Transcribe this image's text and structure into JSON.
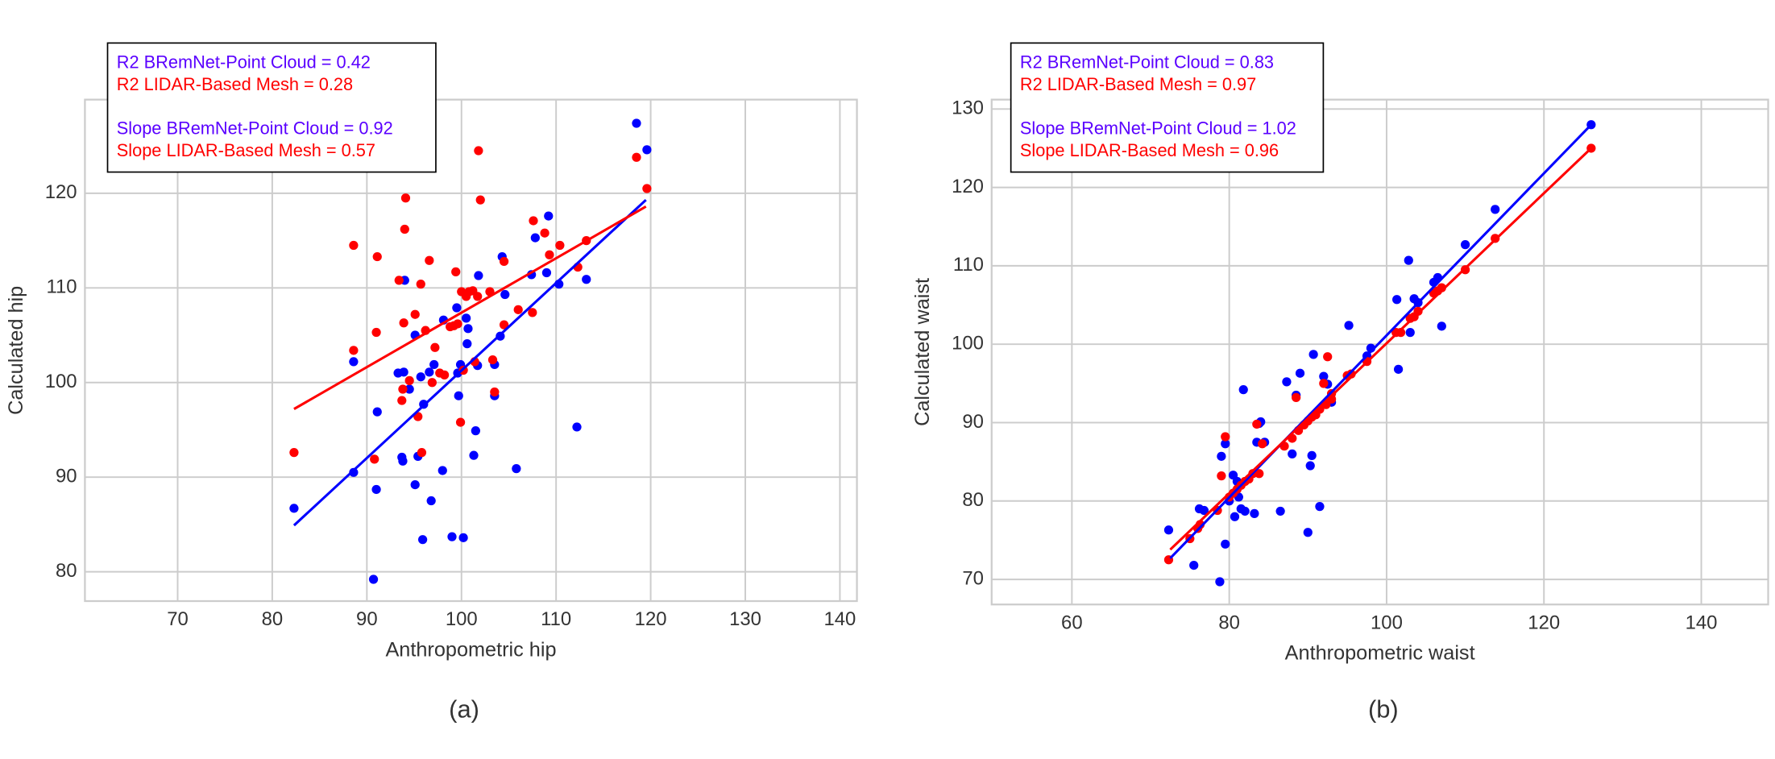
{
  "chart_data": [
    {
      "type": "scatter",
      "caption": "(a)",
      "xlabel": "Anthropometric hip",
      "ylabel": "Calculated hip",
      "xlim": [
        60.2,
        141.8
      ],
      "ylim": [
        76.9,
        129.9
      ],
      "xticks": [
        70,
        80,
        90,
        100,
        110,
        120,
        130,
        140
      ],
      "yticks": [
        80,
        90,
        100,
        110,
        120
      ],
      "grid": true,
      "annotations": [
        {
          "text": "R2 BRemNet-Point Cloud = 0.42",
          "color": "#5a00ff"
        },
        {
          "text": "R2 LIDAR-Based Mesh = 0.28",
          "color": "#ff0000"
        },
        {
          "text": "Slope BRemNet-Point Cloud = 0.92",
          "color": "#5a00ff"
        },
        {
          "text": "Slope LIDAR-Based Mesh = 0.57",
          "color": "#ff0000"
        }
      ],
      "series": [
        {
          "color": "#0000ff",
          "x": [
            82.3,
            88.6,
            88.6,
            90.7,
            91.0,
            91.1,
            93.3,
            93.9,
            93.7,
            93.8,
            94.0,
            94.5,
            95.1,
            95.1,
            95.4,
            95.7,
            95.9,
            96.0,
            96.6,
            96.8,
            97.1,
            98.0,
            98.1,
            99.0,
            99.5,
            99.6,
            99.7,
            99.9,
            100.2,
            100.5,
            100.6,
            100.7,
            101.3,
            101.5,
            101.7,
            101.8,
            103.5,
            103.5,
            104.1,
            104.3,
            104.6,
            105.8,
            107.4,
            107.8,
            109.0,
            109.2,
            110.3,
            112.2,
            113.2,
            118.5,
            119.6
          ],
          "values": [
            86.7,
            90.5,
            102.2,
            79.2,
            88.7,
            96.9,
            101.0,
            101.1,
            92.1,
            91.7,
            110.8,
            99.3,
            89.2,
            105.0,
            92.2,
            100.6,
            83.4,
            97.7,
            101.1,
            87.5,
            101.9,
            90.7,
            106.6,
            83.7,
            107.9,
            101.0,
            98.6,
            101.9,
            83.6,
            106.8,
            104.1,
            105.7,
            92.3,
            94.9,
            101.8,
            111.3,
            98.6,
            101.9,
            104.9,
            113.3,
            109.3,
            90.9,
            111.4,
            115.3,
            111.6,
            117.6,
            110.4,
            95.3,
            110.9,
            127.4,
            124.6
          ],
          "fit_x": [
            82.3,
            119.5
          ],
          "fit_y": [
            84.9,
            119.3
          ]
        },
        {
          "color": "#ff0000",
          "x": [
            82.3,
            88.6,
            88.6,
            90.8,
            91.0,
            91.1,
            93.4,
            93.7,
            93.8,
            93.9,
            94.0,
            94.1,
            94.5,
            95.1,
            95.4,
            95.7,
            95.8,
            96.2,
            96.6,
            96.9,
            97.2,
            97.7,
            98.2,
            98.8,
            99.2,
            99.4,
            99.6,
            99.9,
            100.0,
            100.2,
            100.5,
            100.8,
            101.2,
            101.4,
            101.7,
            101.8,
            102.0,
            103.0,
            103.3,
            103.5,
            104.5,
            104.5,
            106.0,
            107.5,
            107.6,
            108.8,
            109.3,
            110.4,
            112.3,
            113.2,
            118.5,
            119.6
          ],
          "values": [
            92.6,
            114.5,
            103.4,
            91.9,
            105.3,
            113.3,
            110.8,
            98.1,
            99.3,
            106.3,
            116.2,
            119.5,
            100.2,
            107.2,
            96.4,
            110.4,
            92.6,
            105.5,
            112.9,
            100.0,
            103.7,
            101.0,
            100.8,
            105.9,
            106.0,
            111.7,
            106.2,
            95.8,
            109.6,
            101.3,
            109.1,
            109.6,
            109.7,
            102.2,
            109.1,
            124.5,
            119.3,
            109.6,
            102.4,
            99.0,
            106.1,
            112.8,
            107.7,
            107.4,
            117.1,
            115.8,
            113.5,
            114.5,
            112.2,
            115.0,
            123.8,
            120.5
          ],
          "fit_x": [
            82.3,
            119.5
          ],
          "fit_y": [
            97.2,
            118.6
          ]
        }
      ]
    },
    {
      "type": "scatter",
      "caption": "(b)",
      "xlabel": "Anthropometric waist",
      "ylabel": "Calculated waist",
      "xlim": [
        49.8,
        148.5
      ],
      "ylim": [
        66.8,
        131.2
      ],
      "xticks": [
        60,
        80,
        100,
        120,
        140
      ],
      "yticks": [
        70,
        80,
        90,
        100,
        110,
        120,
        130
      ],
      "grid": true,
      "annotations": [
        {
          "text": "R2 BRemNet-Point Cloud = 0.83",
          "color": "#5a00ff"
        },
        {
          "text": "R2 LIDAR-Based Mesh = 0.97",
          "color": "#ff0000"
        },
        {
          "text": "Slope BRemNet-Point Cloud = 1.02",
          "color": "#5a00ff"
        },
        {
          "text": "Slope LIDAR-Based Mesh = 0.96",
          "color": "#ff0000"
        }
      ],
      "series": [
        {
          "color": "#0000ff",
          "x": [
            72.3,
            75.5,
            76.2,
            76.8,
            78.8,
            79,
            79.5,
            79.5,
            80,
            80.5,
            80.7,
            81,
            81.2,
            81.5,
            81.8,
            82,
            83.2,
            83.5,
            83.8,
            84,
            84.5,
            86.5,
            87.3,
            88,
            88.5,
            89,
            90,
            90.3,
            90.5,
            90.7,
            91.5,
            92,
            92.5,
            93,
            95.2,
            97.5,
            98,
            101.3,
            101.5,
            102.8,
            103,
            103.5,
            104,
            106,
            106.5,
            107,
            110,
            113.8,
            126
          ],
          "values": [
            76.3,
            71.8,
            79,
            78.8,
            69.7,
            85.7,
            87.3,
            74.5,
            80,
            83.3,
            78,
            82.5,
            80.5,
            79.0,
            94.2,
            78.7,
            78.4,
            87.5,
            89.9,
            90.1,
            87.5,
            78.7,
            95.2,
            86,
            93.5,
            96.3,
            76,
            84.5,
            85.8,
            98.7,
            79.3,
            95.9,
            94.9,
            92.6,
            102.4,
            98.5,
            99.5,
            105.7,
            96.8,
            110.7,
            101.5,
            105.8,
            105.3,
            107.9,
            108.5,
            102.3,
            112.7,
            117.2,
            128
          ],
          "fit_x": [
            72.5,
            126
          ],
          "fit_y": [
            72.7,
            128
          ]
        },
        {
          "color": "#ff0000",
          "x": [
            72.3,
            75,
            76,
            76.3,
            78.5,
            79,
            79.5,
            80,
            80.5,
            81,
            81.5,
            82,
            82.5,
            83,
            83.5,
            83.8,
            84.2,
            87,
            88,
            88.5,
            88.8,
            89.5,
            90,
            90.5,
            91,
            91.5,
            92,
            92.3,
            92.5,
            93,
            93,
            95,
            95.5,
            97.5,
            101.2,
            101.8,
            103,
            103.5,
            104,
            106,
            106.5,
            107,
            110,
            113.8,
            126
          ],
          "values": [
            72.5,
            75.2,
            76.5,
            77,
            78.8,
            83.2,
            88.2,
            80.5,
            81,
            81.5,
            82,
            82.5,
            82.8,
            83.5,
            89.8,
            83.5,
            87.3,
            87,
            88,
            93.2,
            89,
            89.7,
            90.2,
            90.7,
            91,
            91.7,
            95,
            92.3,
            98.4,
            93,
            93.7,
            96,
            96.2,
            97.8,
            101.5,
            101.5,
            103.3,
            103.5,
            104.2,
            106.5,
            106.8,
            107.2,
            109.5,
            113.5,
            125
          ],
          "fit_x": [
            72.5,
            126
          ],
          "fit_y": [
            73.8,
            125
          ]
        }
      ]
    }
  ]
}
